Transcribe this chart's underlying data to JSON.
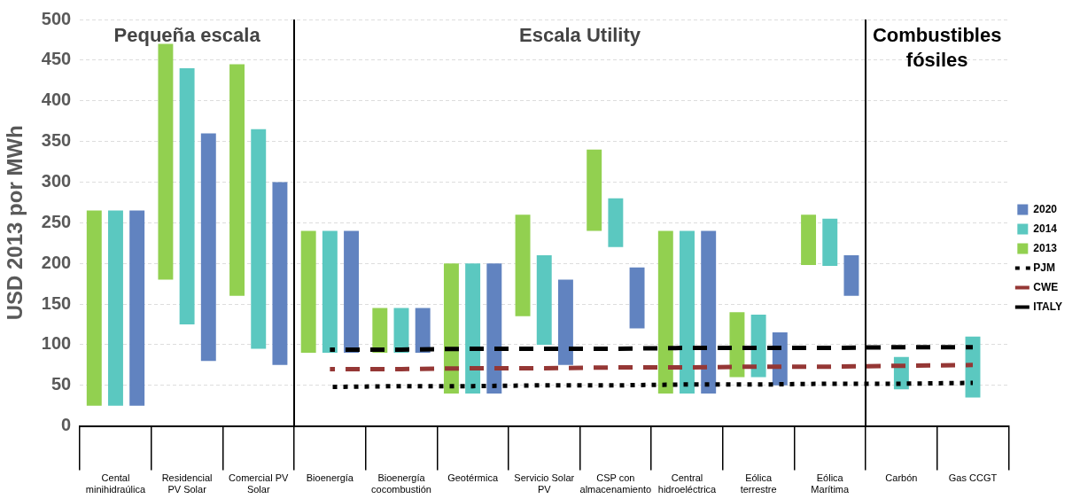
{
  "chart_data": {
    "type": "bar",
    "ylabel": "USD 2013 por MWh",
    "categories": [
      "Cental minihidraúlica",
      "Residencial PV Solar",
      "Comercial PV Solar",
      "Bioenergía",
      "Bioenergía cocombustión",
      "Geotérmica",
      "Servicio Solar PV",
      "CSP con almacenamiento",
      "Central hidroeléctrica",
      "Eólica terrestre",
      "Eólica Marítima",
      "Carbón",
      "Gas CCGT"
    ],
    "series": [
      {
        "name": "2013",
        "color": "#92d050",
        "base": [
          25,
          180,
          160,
          90,
          90,
          40,
          135,
          240,
          40,
          60,
          198,
          null,
          null
        ],
        "values": [
          240,
          290,
          285,
          150,
          55,
          160,
          125,
          100,
          200,
          80,
          62,
          null,
          null
        ]
      },
      {
        "name": "2014",
        "color": "#5bc8c0",
        "base": [
          25,
          125,
          95,
          90,
          90,
          40,
          100,
          220,
          40,
          60,
          197,
          45,
          35
        ],
        "values": [
          240,
          315,
          270,
          150,
          55,
          160,
          110,
          60,
          200,
          77,
          58,
          40,
          75
        ]
      },
      {
        "name": "2020",
        "color": "#6183c0",
        "base": [
          25,
          80,
          75,
          90,
          90,
          40,
          75,
          120,
          40,
          50,
          160,
          null,
          null
        ],
        "values": [
          240,
          280,
          225,
          150,
          55,
          160,
          105,
          75,
          200,
          65,
          50,
          null,
          null
        ]
      },
      {
        "name": "PJM",
        "type": "line",
        "color": "#000000",
        "line_style": "dotted",
        "values": [
          null,
          null,
          null,
          48,
          49,
          49,
          50,
          50,
          51,
          51,
          52,
          52,
          53
        ]
      },
      {
        "name": "CWE",
        "type": "line",
        "color": "#953735",
        "line_style": "dashed",
        "values": [
          null,
          null,
          null,
          70,
          70,
          71,
          71,
          72,
          72,
          73,
          73,
          74,
          75
        ]
      },
      {
        "name": "ITALY",
        "type": "line",
        "color": "#000000",
        "line_style": "dashed",
        "values": [
          null,
          null,
          null,
          94,
          94,
          95,
          95,
          95,
          96,
          96,
          96,
          97,
          97
        ]
      }
    ],
    "annotations": [
      "Pequeña escala",
      "Escala Utility",
      "Combustibles fósiles"
    ],
    "ylim": [
      0,
      500
    ],
    "yticks": [
      0,
      50,
      100,
      150,
      200,
      250,
      300,
      350,
      400,
      450,
      500
    ],
    "grid": "y",
    "legend": "right",
    "marker": "none"
  }
}
